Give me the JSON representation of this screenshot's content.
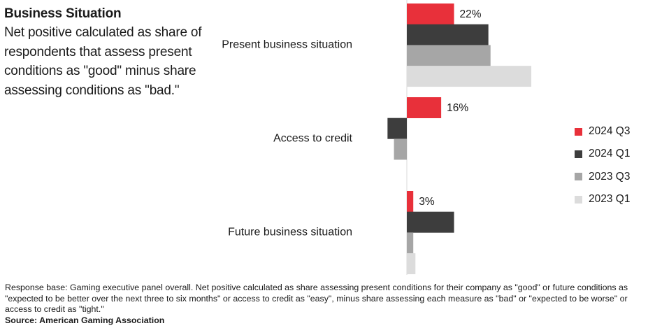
{
  "title": "Business Situation",
  "subtitle": "Net positive calculated as share of respondents that assess present conditions as \"good\" minus share assessing conditions as \"bad.\"",
  "footnote": "Response base: Gaming executive panel overall. Net positive calculated as share assessing present conditions for their company as \"good\" or future conditions as \"expected to be better over the next three to six months\" or access to credit as \"easy\", minus share assessing each measure as \"bad\" or \"expected to be worse\" or access to credit as \"tight.\"",
  "source": "Source: American Gaming Association",
  "colors": {
    "2024 Q3": "#e8303a",
    "2024 Q1": "#3d3d3d",
    "2023 Q3": "#a6a6a6",
    "2023 Q1": "#dcdcdc"
  },
  "chart_data": {
    "type": "bar",
    "orientation": "horizontal",
    "categories": [
      "Present business situation",
      "Access to credit",
      "Future business situation"
    ],
    "series": [
      {
        "name": "2024 Q3",
        "values": [
          22,
          16,
          3
        ]
      },
      {
        "name": "2024 Q1",
        "values": [
          38,
          -9,
          22
        ]
      },
      {
        "name": "2023 Q3",
        "values": [
          39,
          -6,
          3
        ]
      },
      {
        "name": "2023 Q1",
        "values": [
          58,
          0,
          4
        ]
      }
    ],
    "data_labels": [
      {
        "category": "Present business situation",
        "series": "2024 Q3",
        "text": "22%"
      },
      {
        "category": "Access to credit",
        "series": "2024 Q3",
        "text": "16%"
      },
      {
        "category": "Future business situation",
        "series": "2024 Q3",
        "text": "3%"
      }
    ],
    "legend_position": "right",
    "grid": false
  }
}
